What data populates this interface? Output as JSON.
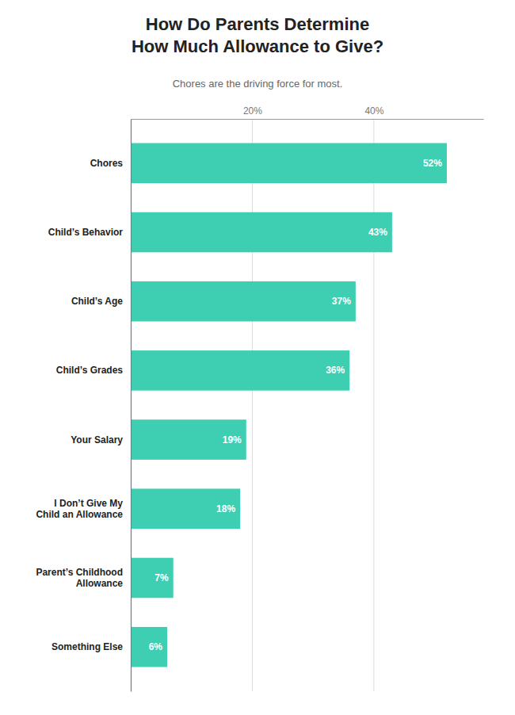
{
  "chart_data": {
    "type": "bar",
    "orientation": "horizontal",
    "title": "How Do Parents Determine\nHow Much Allowance to Give?",
    "subtitle": "Chores are the driving force for most.",
    "categories": [
      "Something Else",
      "Parent’s Childhood\nAllowance",
      "I Don’t Give My\nChild an Allowance",
      "Your Salary",
      "Child’s Grades",
      "Child’s Age",
      "Child’s Behavior",
      "Chores"
    ],
    "values": [
      6,
      7,
      18,
      19,
      36,
      37,
      43,
      52
    ],
    "value_labels": [
      "6%",
      "7%",
      "18%",
      "19%",
      "36%",
      "37%",
      "43%",
      "52%"
    ],
    "data_labels": true,
    "color": "#3ecfb2",
    "xlim": [
      0,
      58
    ],
    "xticks": [
      {
        "value": 20,
        "label": "20%"
      },
      {
        "value": 40,
        "label": "40%"
      }
    ],
    "grid": true
  }
}
